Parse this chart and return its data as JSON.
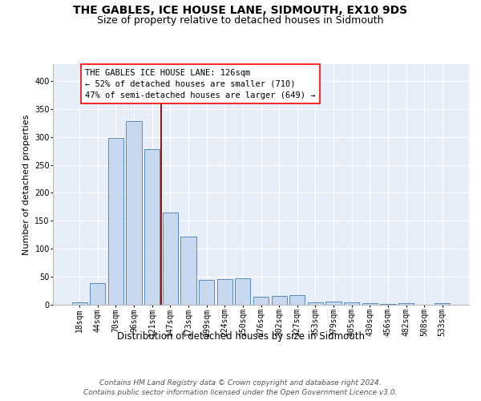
{
  "title": "THE GABLES, ICE HOUSE LANE, SIDMOUTH, EX10 9DS",
  "subtitle": "Size of property relative to detached houses in Sidmouth",
  "xlabel": "Distribution of detached houses by size in Sidmouth",
  "ylabel": "Number of detached properties",
  "categories": [
    "18sqm",
    "44sqm",
    "70sqm",
    "96sqm",
    "121sqm",
    "147sqm",
    "173sqm",
    "199sqm",
    "224sqm",
    "250sqm",
    "276sqm",
    "302sqm",
    "327sqm",
    "353sqm",
    "379sqm",
    "405sqm",
    "430sqm",
    "456sqm",
    "482sqm",
    "508sqm",
    "533sqm"
  ],
  "values": [
    4,
    38,
    298,
    328,
    278,
    165,
    122,
    44,
    46,
    47,
    15,
    16,
    17,
    5,
    6,
    5,
    3,
    2,
    3,
    0,
    3
  ],
  "bar_color": "#c8d8ee",
  "bar_edge_color": "#5a8abf",
  "bar_linewidth": 0.7,
  "red_line_x": 4.5,
  "red_line_color": "#8b0000",
  "annotation_text": "THE GABLES ICE HOUSE LANE: 126sqm\n← 52% of detached houses are smaller (710)\n47% of semi-detached houses are larger (649) →",
  "ylim": [
    0,
    430
  ],
  "yticks": [
    0,
    50,
    100,
    150,
    200,
    250,
    300,
    350,
    400
  ],
  "plot_bg_color": "#e8eef8",
  "grid_color": "#ffffff",
  "footer_text": "Contains HM Land Registry data © Crown copyright and database right 2024.\nContains public sector information licensed under the Open Government Licence v3.0.",
  "title_fontsize": 10,
  "subtitle_fontsize": 9,
  "xlabel_fontsize": 8.5,
  "ylabel_fontsize": 8,
  "tick_fontsize": 7,
  "annot_fontsize": 7.5,
  "footer_fontsize": 6.5
}
